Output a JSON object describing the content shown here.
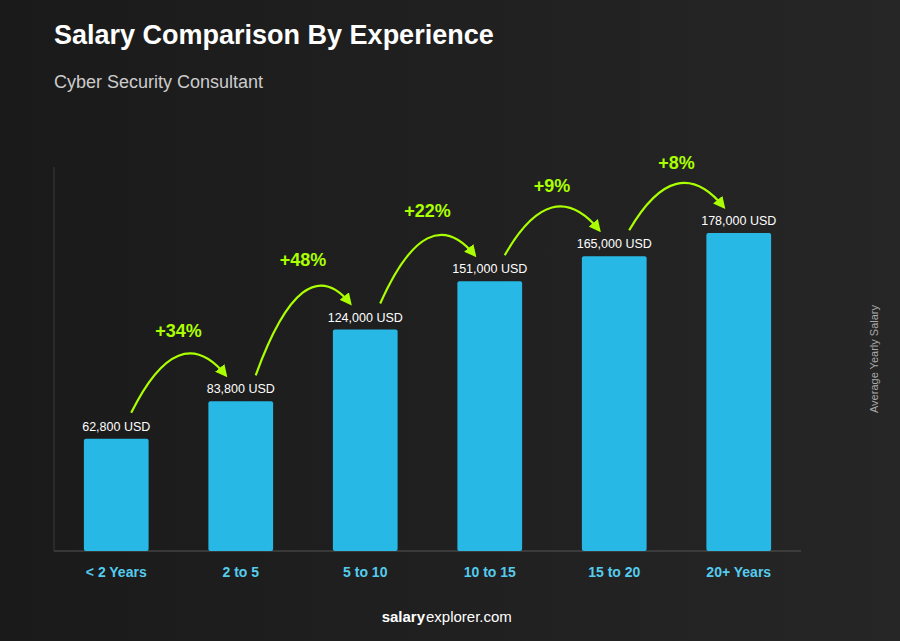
{
  "chart_data": {
    "type": "bar",
    "title": "Salary Comparison By Experience",
    "subtitle": "Cyber Security Consultant",
    "ylabel": "Average Yearly Salary",
    "categories": [
      "< 2 Years",
      "2 to 5",
      "5 to 10",
      "10 to 15",
      "15 to 20",
      "20+ Years"
    ],
    "values": [
      62800,
      83800,
      124000,
      151000,
      165000,
      178000
    ],
    "value_labels": [
      "62,800 USD",
      "83,800 USD",
      "124,000 USD",
      "151,000 USD",
      "165,000 USD",
      "178,000 USD"
    ],
    "data_labels": true,
    "color": "#29c5f6",
    "ylim": [
      0,
      215000
    ],
    "grid": false,
    "tick_labels": "x",
    "annotations": [
      {
        "text": "+34%",
        "color": "#aaff00"
      },
      {
        "text": "+48%",
        "color": "#aaff00"
      },
      {
        "text": "+22%",
        "color": "#aaff00"
      },
      {
        "text": "+9%",
        "color": "#aaff00"
      },
      {
        "text": "+8%",
        "color": "#aaff00"
      }
    ],
    "footer": [
      "salary",
      "explorer.com"
    ]
  }
}
